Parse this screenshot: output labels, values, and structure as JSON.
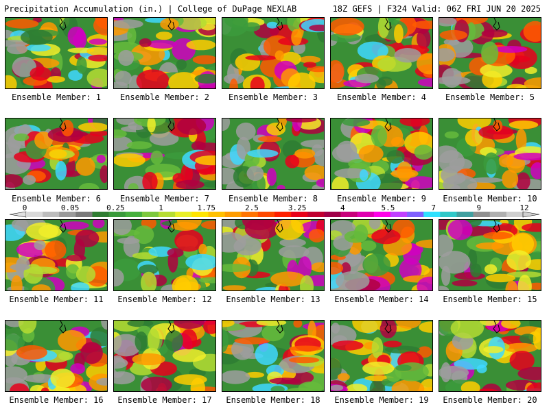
{
  "header": {
    "left": "Precipitation Accumulation (in.) | College of DuPage NEXLAB",
    "right": "18Z GEFS | F324 Valid: 06Z FRI JUN 20 2025"
  },
  "panels": [
    {
      "label": "Ensemble Member: 1"
    },
    {
      "label": "Ensemble Member: 2"
    },
    {
      "label": "Ensemble Member: 3"
    },
    {
      "label": "Ensemble Member: 4"
    },
    {
      "label": "Ensemble Member: 5"
    },
    {
      "label": "Ensemble Member: 6"
    },
    {
      "label": "Ensemble Member: 7"
    },
    {
      "label": "Ensemble Member: 8"
    },
    {
      "label": "Ensemble Member: 9"
    },
    {
      "label": "Ensemble Member: 10"
    },
    {
      "label": "Ensemble Member: 11"
    },
    {
      "label": "Ensemble Member: 12"
    },
    {
      "label": "Ensemble Member: 13"
    },
    {
      "label": "Ensemble Member: 14"
    },
    {
      "label": "Ensemble Member: 15"
    },
    {
      "label": "Ensemble Member: 16"
    },
    {
      "label": "Ensemble Member: 17"
    },
    {
      "label": "Ensemble Member: 18"
    },
    {
      "label": "Ensemble Member: 19"
    },
    {
      "label": "Ensemble Member: 20"
    }
  ],
  "color_scale": {
    "tick_labels": [
      "0",
      "0.05",
      "0.25",
      "1",
      "1.75",
      "2.5",
      "3.25",
      "4",
      "5.5",
      "7",
      "9",
      "12"
    ],
    "colors": [
      "#d9d9d9",
      "#bdbdbd",
      "#9a9a9a",
      "#7a7a7a",
      "#2f7d32",
      "#3a9a3a",
      "#46b03c",
      "#7cc83c",
      "#b6dd32",
      "#e8ef28",
      "#ffe400",
      "#ffc000",
      "#ff9c00",
      "#ff7400",
      "#ff4a00",
      "#ff2000",
      "#e80018",
      "#c00030",
      "#a00048",
      "#c8007a",
      "#e000b0",
      "#ff00e8",
      "#c040ff",
      "#8060ff",
      "#30e0ff",
      "#30c8c8",
      "#40a0a0",
      "#909090",
      "#b0b0b0",
      "#cfcfcf"
    ]
  }
}
